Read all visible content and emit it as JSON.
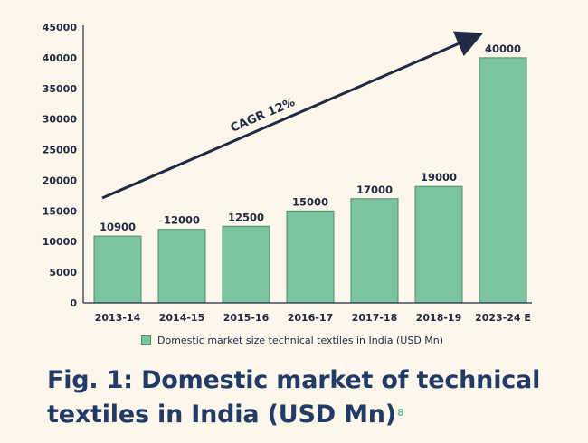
{
  "chart_data": {
    "type": "bar",
    "categories": [
      "2013-14",
      "2014-15",
      "2015-16",
      "2016-17",
      "2017-18",
      "2018-19",
      "2023-24 E"
    ],
    "values": [
      10900,
      12000,
      12500,
      15000,
      17000,
      19000,
      40000
    ],
    "value_labels": [
      "10900",
      "12000",
      "12500",
      "15000",
      "17000",
      "19000",
      "40000"
    ],
    "y_ticks": [
      0,
      5000,
      10000,
      15000,
      20000,
      25000,
      30000,
      35000,
      40000,
      45000
    ],
    "ylim": [
      0,
      45000
    ],
    "series_name": "Domestic market size technical textiles in India (USD Mn)",
    "annotation": "CAGR 12%",
    "bar_color": "#7cc39f",
    "bar_edge_color": "#4e8c6d",
    "axis_color": "#1f2a44",
    "text_color": "#1f2a44",
    "legend_position": "bottom",
    "grid": false
  },
  "caption": {
    "text": "Fig. 1: Domestic market of technical textiles in India (USD Mn)",
    "superscript": "8",
    "color": "#213b66",
    "superscript_color": "#73c29a"
  }
}
